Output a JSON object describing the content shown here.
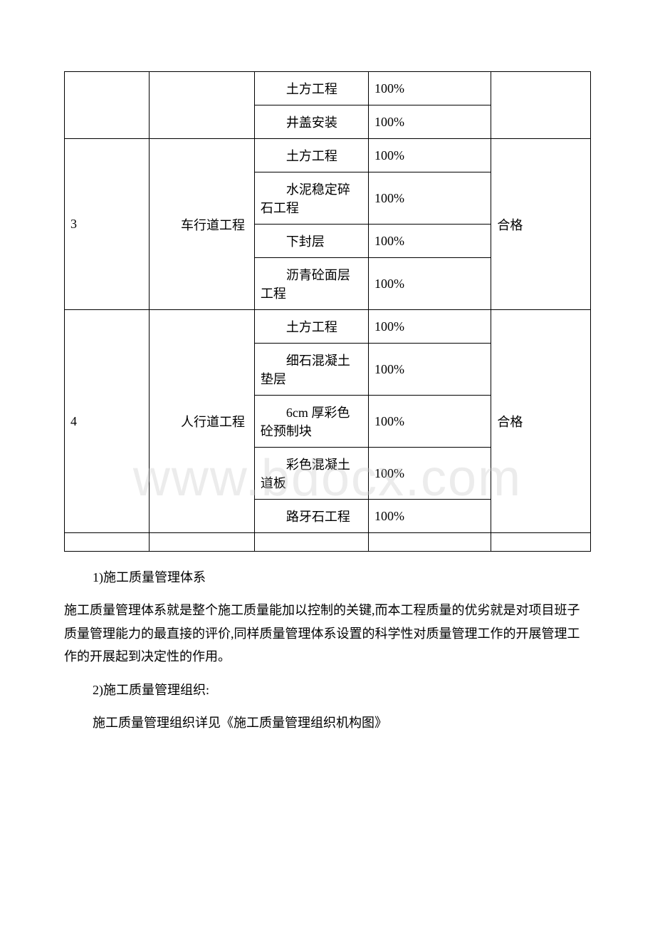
{
  "table": {
    "pre_rows": [
      {
        "c3": "土方工程",
        "c4": "100%"
      },
      {
        "c3": "井盖安装",
        "c4": "100%"
      }
    ],
    "group3": {
      "num": "3",
      "name": "车行道工程",
      "result": "合格",
      "rows": [
        {
          "c3": "土方工程",
          "c4": "100%"
        },
        {
          "c3": "水泥稳定碎石工程",
          "c4": "100%"
        },
        {
          "c3": "下封层",
          "c4": "100%"
        },
        {
          "c3": "沥青砼面层工程",
          "c4": "100%"
        }
      ]
    },
    "group4": {
      "num": "4",
      "name": "人行道工程",
      "result": "合格",
      "rows": [
        {
          "c3": "土方工程",
          "c4": "100%"
        },
        {
          "c3": "细石混凝土垫层",
          "c4": "100%"
        },
        {
          "c3": "6cm 厚彩色砼预制块",
          "c4": "100%"
        },
        {
          "c3": "彩色混凝土道板",
          "c4": "100%"
        },
        {
          "c3": "路牙石工程",
          "c4": "100%"
        }
      ]
    }
  },
  "text": {
    "p1": "1)施工质量管理体系",
    "p2": "施工质量管理体系就是整个施工质量能加以控制的关键,而本工程质量的优劣就是对项目班子质量管理能力的最直接的评价,同样质量管理体系设置的科学性对质量管理工作的开展管理工作的开展起到决定性的作用。",
    "p3": "2)施工质量管理组织:",
    "p4": "施工质量管理组织详见《施工质量管理组织机构图》"
  },
  "watermark": "www.bdocx.com"
}
